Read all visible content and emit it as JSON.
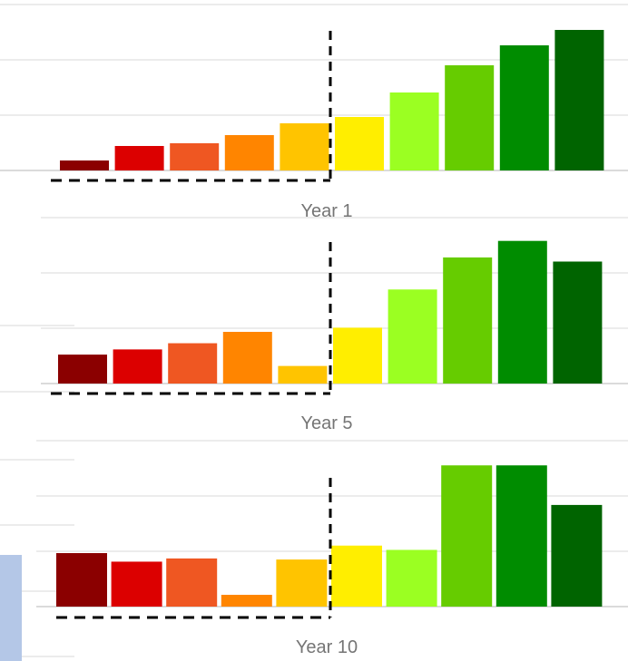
{
  "chart_data": [
    {
      "type": "bar",
      "title": "Year 1",
      "values": [
        11,
        27,
        30,
        39,
        52,
        59,
        86,
        116,
        138,
        155
      ],
      "colors": [
        "#8b0000",
        "#dc0000",
        "#ef5722",
        "#ff8500",
        "#ffc400",
        "#ffee00",
        "#9bff22",
        "#66cc00",
        "#008c00",
        "#006400"
      ],
      "ylim": [
        0,
        180
      ],
      "grid": true
    },
    {
      "type": "bar",
      "title": "Year 5",
      "values": [
        28,
        33,
        39,
        50,
        17,
        54,
        91,
        122,
        138,
        118
      ],
      "colors": [
        "#8b0000",
        "#dc0000",
        "#ef5722",
        "#ff8500",
        "#ffc400",
        "#ffee00",
        "#9bff22",
        "#66cc00",
        "#008c00",
        "#006400"
      ],
      "ylim": [
        0,
        180
      ],
      "grid": true
    },
    {
      "type": "bar",
      "title": "Year 10",
      "values": [
        50,
        42,
        45,
        11,
        44,
        57,
        53,
        132,
        132,
        95
      ],
      "colors": [
        "#8b0000",
        "#dc0000",
        "#ef5722",
        "#ff8500",
        "#ffc400",
        "#ffee00",
        "#9bff22",
        "#66cc00",
        "#008c00",
        "#006400"
      ],
      "ylim": [
        0,
        180
      ],
      "grid": true
    }
  ]
}
